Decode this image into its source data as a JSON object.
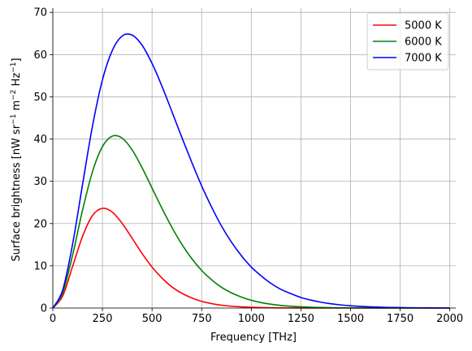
{
  "chart_data": {
    "type": "line",
    "title": "",
    "xlabel": "Frequency [THz]",
    "ylabel": {
      "base1": "Surface brightness [nW sr",
      "sup1": "−1",
      "base2": " m",
      "sup2": "−2",
      "base3": " Hz",
      "sup3": "−1",
      "base4": "]"
    },
    "xlim": [
      0,
      2030
    ],
    "ylim": [
      0,
      71
    ],
    "xticks": [
      0,
      250,
      500,
      750,
      1000,
      1250,
      1500,
      1750,
      2000
    ],
    "yticks": [
      0,
      10,
      20,
      30,
      40,
      50,
      60,
      70
    ],
    "grid": true,
    "legend_position": "top-right",
    "x_step": 50,
    "x": [
      0,
      50,
      100,
      150,
      200,
      250,
      300,
      350,
      400,
      450,
      500,
      550,
      600,
      650,
      700,
      750,
      800,
      850,
      900,
      950,
      1000,
      1050,
      1100,
      1150,
      1200,
      1250,
      1300,
      1350,
      1400,
      1450,
      1500,
      1550,
      1600,
      1650,
      1700,
      1750,
      1800,
      1850,
      1900,
      1950,
      2000
    ],
    "series": [
      {
        "name": "5000 K",
        "color": "#ff0000",
        "values": [
          0,
          2.9,
          9.9,
          17.0,
          21.9,
          23.6,
          22.7,
          20.0,
          16.5,
          12.9,
          9.7,
          7.1,
          5.0,
          3.5,
          2.4,
          1.58,
          1.04,
          0.67,
          0.43,
          0.27,
          0.17,
          0.11,
          0.066,
          0.041,
          0.025,
          0.015,
          0.009,
          0.006,
          0.003,
          0.002,
          0.001,
          0.001,
          0.0005,
          0.0003,
          0.0002,
          0.0001,
          0.0001,
          0,
          0,
          0,
          0
        ]
      },
      {
        "name": "6000 K",
        "color": "#008000",
        "values": [
          0,
          3.6,
          12.6,
          23.2,
          32.3,
          38.2,
          40.7,
          40.2,
          37.4,
          33.2,
          28.4,
          23.6,
          19.1,
          15.1,
          11.7,
          8.9,
          6.7,
          4.9,
          3.6,
          2.6,
          1.84,
          1.29,
          0.9,
          0.62,
          0.42,
          0.29,
          0.19,
          0.13,
          0.085,
          0.056,
          0.037,
          0.024,
          0.016,
          0.01,
          0.007,
          0.004,
          0.003,
          0.002,
          0.001,
          0.001,
          0.0005
        ]
      },
      {
        "name": "7000 K",
        "color": "#0000ff",
        "values": [
          0,
          4.3,
          15.2,
          29.3,
          43.1,
          54.0,
          61.0,
          64.4,
          64.6,
          62.2,
          57.9,
          52.5,
          46.5,
          40.4,
          34.5,
          28.9,
          23.9,
          19.4,
          15.6,
          12.4,
          9.7,
          7.6,
          5.8,
          4.4,
          3.4,
          2.5,
          1.88,
          1.39,
          1.02,
          0.74,
          0.54,
          0.39,
          0.28,
          0.2,
          0.14,
          0.1,
          0.07,
          0.05,
          0.035,
          0.025,
          0.017
        ]
      }
    ]
  }
}
